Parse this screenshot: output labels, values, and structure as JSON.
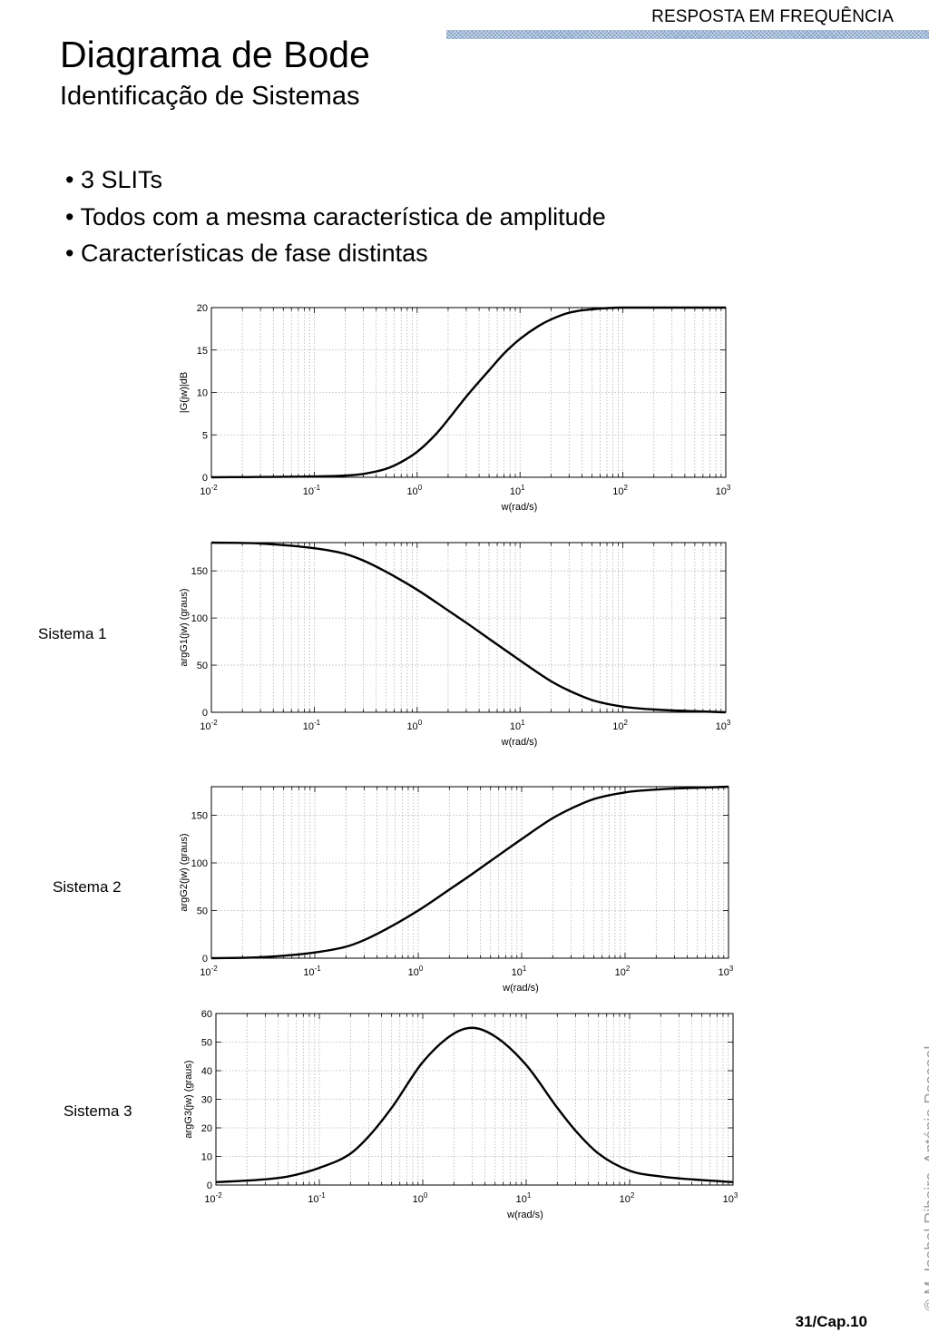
{
  "header": {
    "section": "RESPOSTA EM FREQUÊNCIA"
  },
  "title": "Diagrama de Bode",
  "subtitle": "Identificação de Sistemas",
  "bullets": [
    "• 3 SLITs",
    "• Todos com a mesma característica de amplitude",
    "• Características de fase distintas"
  ],
  "system_labels": [
    "Sistema 1",
    "Sistema 2",
    "Sistema 3"
  ],
  "footer": {
    "page": "31/Cap.10",
    "copyright": "© M. Isabel Ribeiro, António Pascoal"
  },
  "chart_data": [
    {
      "type": "line",
      "xlabel": "w(rad/s)",
      "ylabel": "|G(jw)|dB",
      "xscale": "log",
      "xlim": [
        0.01,
        1000
      ],
      "ylim": [
        0,
        20
      ],
      "xticks": [
        0.01,
        0.1,
        1,
        10,
        100,
        1000
      ],
      "yticks": [
        0,
        5,
        10,
        15,
        20
      ],
      "grid": true,
      "series": [
        {
          "x": [
            0.01,
            0.1,
            0.2,
            0.3,
            0.5,
            0.7,
            1,
            1.5,
            2,
            3,
            5,
            7,
            10,
            15,
            20,
            30,
            50,
            100,
            1000
          ],
          "y": [
            0,
            0.1,
            0.2,
            0.4,
            1,
            1.8,
            3,
            5,
            6.8,
            9.5,
            12.6,
            14.6,
            16.3,
            17.8,
            18.6,
            19.4,
            19.8,
            20,
            20
          ]
        }
      ]
    },
    {
      "type": "line",
      "xlabel": "w(rad/s)",
      "ylabel": "argG1(jw) (graus)",
      "xscale": "log",
      "xlim": [
        0.01,
        1000
      ],
      "ylim": [
        0,
        180
      ],
      "xticks": [
        0.01,
        0.1,
        1,
        10,
        100,
        1000
      ],
      "yticks": [
        0,
        50,
        100,
        150
      ],
      "grid": true,
      "series": [
        {
          "x": [
            0.01,
            0.03,
            0.1,
            0.2,
            0.3,
            0.5,
            1,
            2,
            3,
            5,
            10,
            20,
            30,
            50,
            100,
            200,
            1000
          ],
          "y": [
            180,
            179,
            174,
            168,
            161,
            149,
            130,
            108,
            95,
            78,
            55,
            33,
            23,
            13,
            6,
            3,
            0
          ]
        }
      ]
    },
    {
      "type": "line",
      "xlabel": "w(rad/s)",
      "ylabel": "argG2(jw) (graus)",
      "xscale": "log",
      "xlim": [
        0.01,
        1000
      ],
      "ylim": [
        0,
        180
      ],
      "xticks": [
        0.01,
        0.1,
        1,
        10,
        100,
        1000
      ],
      "yticks": [
        0,
        50,
        100,
        150
      ],
      "grid": true,
      "series": [
        {
          "x": [
            0.01,
            0.03,
            0.1,
            0.2,
            0.3,
            0.5,
            1,
            2,
            3,
            5,
            10,
            20,
            30,
            50,
            100,
            200,
            1000
          ],
          "y": [
            0,
            1,
            6,
            12,
            19,
            31,
            50,
            72,
            85,
            102,
            125,
            147,
            157,
            167,
            174,
            177,
            180
          ]
        }
      ]
    },
    {
      "type": "line",
      "xlabel": "w(rad/s)",
      "ylabel": "argG3(jw) (graus)",
      "xscale": "log",
      "xlim": [
        0.01,
        1000
      ],
      "ylim": [
        0,
        60
      ],
      "xticks": [
        0.01,
        0.1,
        1,
        10,
        100,
        1000
      ],
      "yticks": [
        0,
        10,
        20,
        30,
        40,
        50,
        60
      ],
      "grid": true,
      "series": [
        {
          "x": [
            0.01,
            0.03,
            0.05,
            0.1,
            0.2,
            0.3,
            0.5,
            1,
            2,
            3,
            5,
            10,
            20,
            30,
            50,
            100,
            200,
            1000
          ],
          "y": [
            1,
            2,
            3,
            6,
            11,
            17,
            27,
            43,
            53,
            55,
            52,
            42,
            27,
            19,
            11,
            5,
            3,
            1
          ]
        }
      ]
    }
  ]
}
